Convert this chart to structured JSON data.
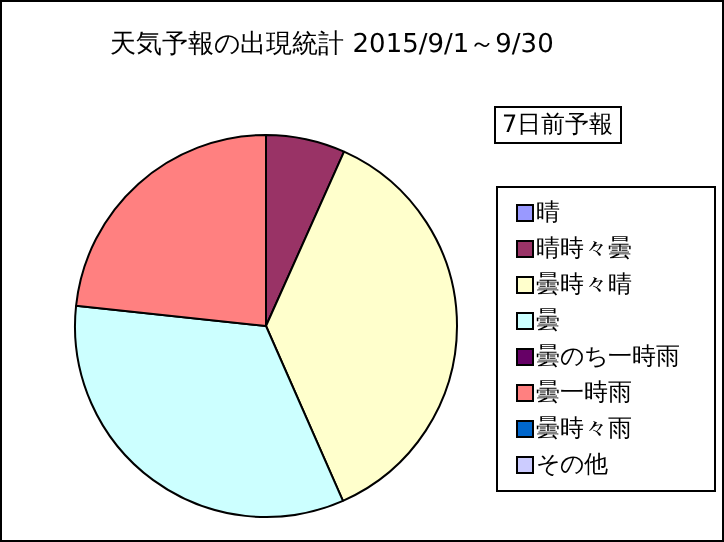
{
  "chart_data": {
    "type": "pie",
    "title": "天気予報の出現統計 2015/9/1～9/30",
    "legend_title": "7日前予報",
    "legend": "right",
    "categories": [
      "晴",
      "晴時々曇",
      "曇時々晴",
      "曇",
      "曇のち一時雨",
      "曇一時雨",
      "曇時々雨",
      "その他"
    ],
    "values": [
      0,
      6.7,
      36.7,
      33.3,
      0,
      23.3,
      0,
      0
    ],
    "colors": [
      "#9999ff",
      "#993366",
      "#ffffcc",
      "#ccffff",
      "#660066",
      "#ff8080",
      "#0066cc",
      "#ccccff"
    ]
  }
}
